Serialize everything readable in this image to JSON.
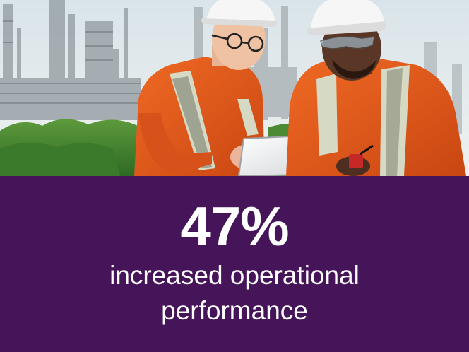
{
  "photo": {
    "alt_icon": "industrial-workers-photo"
  },
  "stat": {
    "value": "47%",
    "label_line1": "increased operational",
    "label_line2": "performance"
  },
  "colors": {
    "panel_background": "#461458",
    "text": "#ffffff",
    "coverall": "#e85a1c",
    "hard_hat": "#f4f4f4",
    "reflective_strip": "#d6d9c4"
  }
}
